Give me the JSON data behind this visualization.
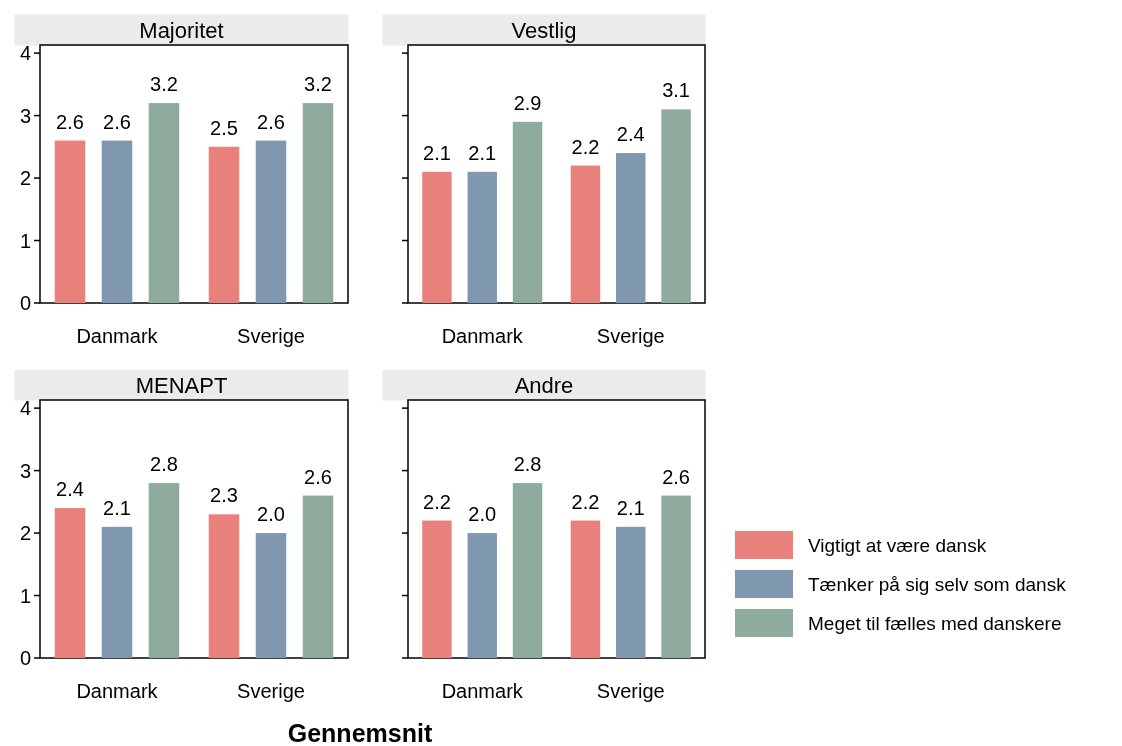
{
  "chart_data": [
    {
      "type": "bar",
      "title": "Majoritet",
      "categories": [
        "Danmark",
        "Sverige"
      ],
      "ylim": [
        0,
        4.13
      ],
      "yticks": [
        0,
        1,
        2,
        3,
        4
      ],
      "grid": false,
      "legend": false,
      "series": [
        {
          "color": "#e8817c",
          "values": [
            2.6,
            2.5
          ],
          "value_labels": [
            "2.6",
            "2.5"
          ]
        },
        {
          "color": "#7f98b0",
          "values": [
            2.6,
            2.6
          ],
          "value_labels": [
            "2.6",
            "2.6"
          ]
        },
        {
          "color": "#8fab9e",
          "values": [
            3.2,
            3.2
          ],
          "value_labels": [
            "3.2",
            "3.2"
          ]
        }
      ]
    },
    {
      "type": "bar",
      "title": "Vestlig",
      "categories": [
        "Danmark",
        "Sverige"
      ],
      "ylim": [
        0,
        4.13
      ],
      "yticks": [
        0,
        1,
        2,
        3,
        4
      ],
      "tick_labels": "x",
      "grid": false,
      "legend": false,
      "series": [
        {
          "color": "#e8817c",
          "values": [
            2.1,
            2.2
          ],
          "value_labels": [
            "2.1",
            "2.2"
          ]
        },
        {
          "color": "#7f98b0",
          "values": [
            2.1,
            2.4
          ],
          "value_labels": [
            "2.1",
            "2.4"
          ]
        },
        {
          "color": "#8fab9e",
          "values": [
            2.9,
            3.1
          ],
          "value_labels": [
            "2.9",
            "3.1"
          ]
        }
      ]
    },
    {
      "type": "bar",
      "title": "MENAPT",
      "xlabel": "Gennemsnit",
      "categories": [
        "Danmark",
        "Sverige"
      ],
      "ylim": [
        0,
        4.13
      ],
      "yticks": [
        0,
        1,
        2,
        3,
        4
      ],
      "grid": false,
      "legend": false,
      "series": [
        {
          "color": "#e8817c",
          "values": [
            2.4,
            2.3
          ],
          "value_labels": [
            "2.4",
            "2.3"
          ]
        },
        {
          "color": "#7f98b0",
          "values": [
            2.1,
            2.0
          ],
          "value_labels": [
            "2.1",
            "2.0"
          ]
        },
        {
          "color": "#8fab9e",
          "values": [
            2.8,
            2.6
          ],
          "value_labels": [
            "2.8",
            "2.6"
          ]
        }
      ]
    },
    {
      "type": "bar",
      "title": "Andre",
      "categories": [
        "Danmark",
        "Sverige"
      ],
      "ylim": [
        0,
        4.13
      ],
      "yticks": [
        0,
        1,
        2,
        3,
        4
      ],
      "tick_labels": "x",
      "grid": false,
      "legend": "right",
      "series": [
        {
          "name": "Vigtigt at være dansk",
          "color": "#e8817c",
          "values": [
            2.2,
            2.2
          ],
          "value_labels": [
            "2.2",
            "2.2"
          ]
        },
        {
          "name": "Tænker på sig selv som dansk",
          "color": "#7f98b0",
          "values": [
            2.0,
            2.1
          ],
          "value_labels": [
            "2.0",
            "2.1"
          ]
        },
        {
          "name": "Meget til fælles med danskere",
          "color": "#8fab9e",
          "values": [
            2.8,
            2.6
          ],
          "value_labels": [
            "2.8",
            "2.6"
          ]
        }
      ]
    }
  ]
}
